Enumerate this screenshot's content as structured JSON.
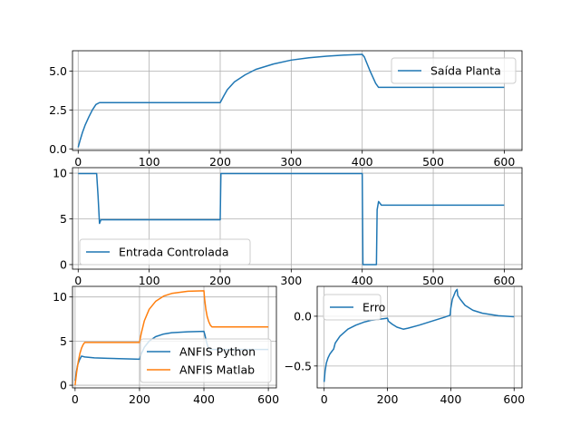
{
  "colors": {
    "blue": "#1f77b4",
    "orange": "#ff7f0e",
    "grid": "#b0b0b0"
  },
  "chart_data": [
    {
      "id": "planta",
      "type": "line",
      "xlim": [
        -8,
        625
      ],
      "ylim": [
        -0.1,
        6.3
      ],
      "xticks": [
        0,
        100,
        200,
        300,
        400,
        500,
        600
      ],
      "yticks": [
        0.0,
        2.5,
        5.0
      ],
      "ytick_labels": [
        "0.0",
        "2.5",
        "5.0"
      ],
      "grid": true,
      "legend_position": "upper right",
      "series": [
        {
          "name": "Saída Planta",
          "color": "#1f77b4",
          "points": [
            [
              0,
              0.1
            ],
            [
              3,
              0.6
            ],
            [
              6,
              1.05
            ],
            [
              10,
              1.55
            ],
            [
              15,
              2.05
            ],
            [
              20,
              2.5
            ],
            [
              25,
              2.85
            ],
            [
              30,
              2.97
            ],
            [
              60,
              2.97
            ],
            [
              100,
              2.97
            ],
            [
              150,
              2.97
            ],
            [
              200,
              2.97
            ],
            [
              205,
              3.4
            ],
            [
              210,
              3.8
            ],
            [
              220,
              4.3
            ],
            [
              235,
              4.75
            ],
            [
              250,
              5.1
            ],
            [
              275,
              5.45
            ],
            [
              300,
              5.7
            ],
            [
              325,
              5.85
            ],
            [
              350,
              5.95
            ],
            [
              375,
              6.02
            ],
            [
              400,
              6.07
            ],
            [
              403,
              5.9
            ],
            [
              407,
              5.45
            ],
            [
              411,
              5.0
            ],
            [
              415,
              4.6
            ],
            [
              419,
              4.2
            ],
            [
              423,
              3.95
            ],
            [
              430,
              3.95
            ],
            [
              500,
              3.95
            ],
            [
              600,
              3.95
            ]
          ]
        }
      ]
    },
    {
      "id": "entrada",
      "type": "line",
      "xlim": [
        -8,
        625
      ],
      "ylim": [
        -0.5,
        10.6
      ],
      "xticks": [
        0,
        100,
        200,
        300,
        400,
        500,
        600
      ],
      "yticks": [
        0,
        5,
        10
      ],
      "ytick_labels": [
        "0",
        "5",
        "10"
      ],
      "grid": true,
      "legend_position": "lower left",
      "series": [
        {
          "name": "Entrada Controlada",
          "color": "#1f77b4",
          "points": [
            [
              0,
              9.95
            ],
            [
              26,
              9.95
            ],
            [
              28,
              7.5
            ],
            [
              30,
              4.5
            ],
            [
              32,
              4.9
            ],
            [
              60,
              4.9
            ],
            [
              100,
              4.9
            ],
            [
              150,
              4.9
            ],
            [
              200,
              4.9
            ],
            [
              201,
              9.95
            ],
            [
              300,
              9.95
            ],
            [
              400,
              9.95
            ],
            [
              401,
              0.0
            ],
            [
              420,
              0.0
            ],
            [
              421,
              6.0
            ],
            [
              423,
              6.9
            ],
            [
              427,
              6.5
            ],
            [
              500,
              6.5
            ],
            [
              600,
              6.5
            ]
          ]
        }
      ]
    },
    {
      "id": "anfis",
      "type": "line",
      "xlim": [
        -8,
        625
      ],
      "ylim": [
        -0.3,
        11.2
      ],
      "xticks": [
        0,
        200,
        400,
        600
      ],
      "yticks": [
        0,
        5,
        10
      ],
      "ytick_labels": [
        "0",
        "5",
        "10"
      ],
      "grid": true,
      "legend_position": "lower right",
      "series": [
        {
          "name": "ANFIS Python",
          "color": "#1f77b4",
          "points": [
            [
              0,
              0.5
            ],
            [
              4,
              1.5
            ],
            [
              8,
              2.3
            ],
            [
              14,
              2.9
            ],
            [
              20,
              3.3
            ],
            [
              30,
              3.2
            ],
            [
              60,
              3.1
            ],
            [
              100,
              3.05
            ],
            [
              150,
              3.0
            ],
            [
              200,
              2.95
            ],
            [
              205,
              3.5
            ],
            [
              215,
              4.3
            ],
            [
              230,
              5.0
            ],
            [
              250,
              5.5
            ],
            [
              275,
              5.8
            ],
            [
              300,
              5.95
            ],
            [
              350,
              6.05
            ],
            [
              400,
              6.1
            ],
            [
              403,
              5.7
            ],
            [
              408,
              4.9
            ],
            [
              413,
              4.3
            ],
            [
              418,
              4.1
            ],
            [
              425,
              4.05
            ],
            [
              500,
              4.05
            ],
            [
              600,
              4.05
            ]
          ]
        },
        {
          "name": "ANFIS Matlab",
          "color": "#ff7f0e",
          "points": [
            [
              0,
              0.0
            ],
            [
              5,
              1.5
            ],
            [
              10,
              2.7
            ],
            [
              15,
              3.6
            ],
            [
              20,
              4.2
            ],
            [
              25,
              4.6
            ],
            [
              30,
              4.85
            ],
            [
              60,
              4.85
            ],
            [
              100,
              4.85
            ],
            [
              150,
              4.85
            ],
            [
              200,
              4.85
            ],
            [
              205,
              5.8
            ],
            [
              215,
              7.3
            ],
            [
              230,
              8.6
            ],
            [
              250,
              9.5
            ],
            [
              275,
              10.1
            ],
            [
              300,
              10.4
            ],
            [
              350,
              10.65
            ],
            [
              400,
              10.7
            ],
            [
              402,
              9.8
            ],
            [
              406,
              8.6
            ],
            [
              410,
              7.8
            ],
            [
              415,
              7.2
            ],
            [
              420,
              6.8
            ],
            [
              425,
              6.6
            ],
            [
              500,
              6.6
            ],
            [
              600,
              6.6
            ]
          ]
        }
      ]
    },
    {
      "id": "erro",
      "type": "line",
      "xlim": [
        -22,
        625
      ],
      "ylim": [
        -0.72,
        0.3
      ],
      "xticks": [
        0,
        200,
        400,
        600
      ],
      "yticks": [
        -0.5,
        0.0
      ],
      "ytick_labels": [
        "−0.5",
        "0.0"
      ],
      "grid": true,
      "legend_position": "upper left",
      "series": [
        {
          "name": "Erro",
          "color": "#1f77b4",
          "points": [
            [
              0,
              -0.66
            ],
            [
              3,
              -0.55
            ],
            [
              7,
              -0.47
            ],
            [
              12,
              -0.42
            ],
            [
              18,
              -0.38
            ],
            [
              25,
              -0.35
            ],
            [
              30,
              -0.33
            ],
            [
              35,
              -0.27
            ],
            [
              50,
              -0.2
            ],
            [
              75,
              -0.13
            ],
            [
              100,
              -0.09
            ],
            [
              125,
              -0.06
            ],
            [
              150,
              -0.04
            ],
            [
              175,
              -0.03
            ],
            [
              200,
              -0.02
            ],
            [
              203,
              -0.05
            ],
            [
              215,
              -0.08
            ],
            [
              230,
              -0.11
            ],
            [
              250,
              -0.13
            ],
            [
              265,
              -0.12
            ],
            [
              300,
              -0.09
            ],
            [
              350,
              -0.04
            ],
            [
              380,
              -0.01
            ],
            [
              398,
              0.01
            ],
            [
              400,
              0.08
            ],
            [
              405,
              0.17
            ],
            [
              410,
              0.21
            ],
            [
              415,
              0.25
            ],
            [
              420,
              0.27
            ],
            [
              422,
              0.21
            ],
            [
              430,
              0.17
            ],
            [
              445,
              0.11
            ],
            [
              470,
              0.06
            ],
            [
              500,
              0.03
            ],
            [
              550,
              0.005
            ],
            [
              600,
              -0.005
            ]
          ]
        }
      ]
    }
  ]
}
